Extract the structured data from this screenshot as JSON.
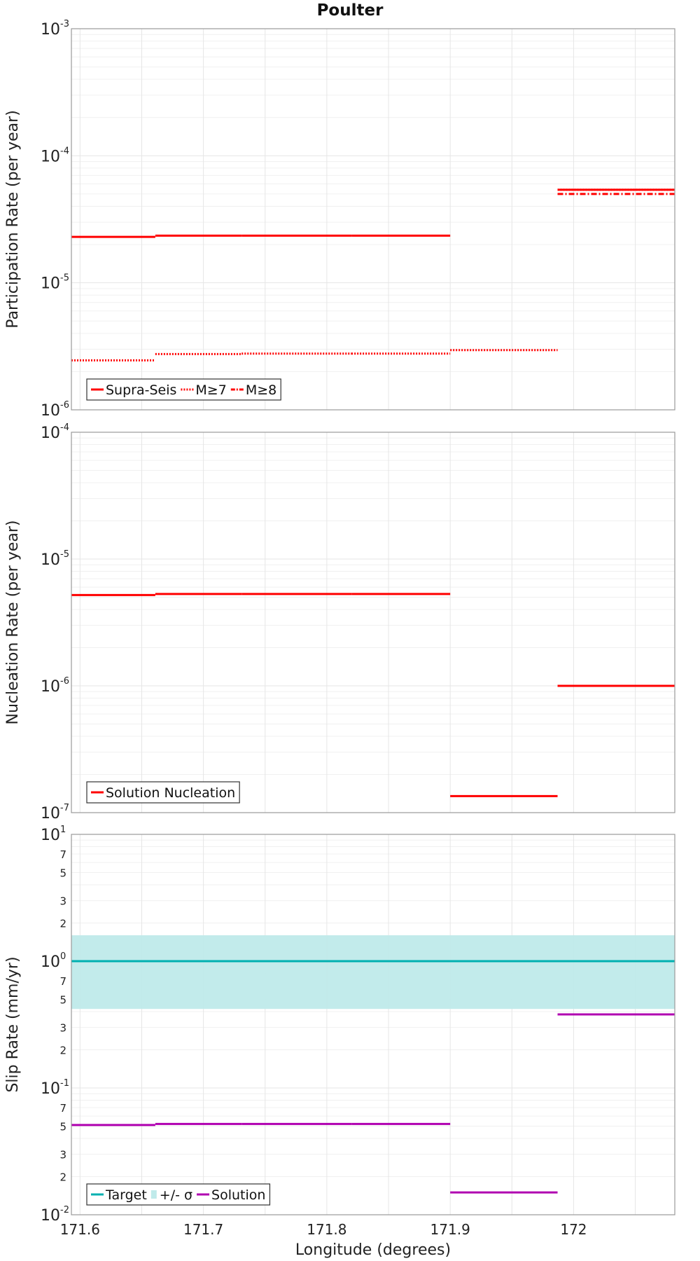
{
  "chart_data": [
    {
      "type": "line",
      "title": "Poulter",
      "ylabel": "Participation Rate (per year)",
      "xlabel": "",
      "yscale": "log",
      "xlim": [
        171.593,
        172.082
      ],
      "ylim": [
        1e-06,
        0.001
      ],
      "grid": true,
      "legend_position": "bottom-left",
      "series": [
        {
          "name": "Supra-Seis",
          "color": "#ff0000",
          "style": "solid",
          "segments": [
            {
              "x": [
                171.593,
                171.661
              ],
              "y": 2.3e-05
            },
            {
              "x": [
                171.661,
                171.731
              ],
              "y": 2.35e-05
            },
            {
              "x": [
                171.731,
                171.82
              ],
              "y": 2.35e-05
            },
            {
              "x": [
                171.82,
                171.9
              ],
              "y": 2.35e-05
            },
            {
              "x": [
                171.987,
                172.082
              ],
              "y": 5.4e-05
            }
          ]
        },
        {
          "name": "M≥7",
          "color": "#ff0000",
          "style": "dotted",
          "segments": [
            {
              "x": [
                171.593,
                171.661
              ],
              "y": 2.45e-06
            },
            {
              "x": [
                171.661,
                171.731
              ],
              "y": 2.75e-06
            },
            {
              "x": [
                171.731,
                171.82
              ],
              "y": 2.77e-06
            },
            {
              "x": [
                171.82,
                171.9
              ],
              "y": 2.77e-06
            },
            {
              "x": [
                171.9,
                171.987
              ],
              "y": 2.95e-06
            },
            {
              "x": [
                171.987,
                172.082
              ],
              "y": 5.4e-05
            }
          ]
        },
        {
          "name": "M≥8",
          "color": "#ff0000",
          "style": "dashdot",
          "segments": [
            {
              "x": [
                171.987,
                172.082
              ],
              "y": 5e-05
            }
          ]
        }
      ]
    },
    {
      "type": "line",
      "title": "",
      "ylabel": "Nucleation Rate (per year)",
      "xlabel": "",
      "yscale": "log",
      "xlim": [
        171.593,
        172.082
      ],
      "ylim": [
        1e-07,
        0.0001
      ],
      "grid": true,
      "legend_position": "bottom-left",
      "series": [
        {
          "name": "Solution Nucleation",
          "color": "#ff0000",
          "style": "solid",
          "segments": [
            {
              "x": [
                171.593,
                171.661
              ],
              "y": 5.2e-06
            },
            {
              "x": [
                171.661,
                171.731
              ],
              "y": 5.3e-06
            },
            {
              "x": [
                171.731,
                171.82
              ],
              "y": 5.3e-06
            },
            {
              "x": [
                171.82,
                171.9
              ],
              "y": 5.3e-06
            },
            {
              "x": [
                171.9,
                171.987
              ],
              "y": 1.35e-07
            },
            {
              "x": [
                171.987,
                172.082
              ],
              "y": 1e-06
            }
          ]
        }
      ]
    },
    {
      "type": "line",
      "title": "",
      "ylabel": "Slip Rate (mm/yr)",
      "xlabel": "Longitude (degrees)",
      "yscale": "log",
      "xlim": [
        171.593,
        172.082
      ],
      "ylim": [
        0.01,
        10
      ],
      "grid": true,
      "legend_position": "bottom-left",
      "x_ticks": [
        "171.6",
        "171.7",
        "171.8",
        "171.9",
        "172"
      ],
      "series": [
        {
          "name": "Target",
          "color": "#00b0b0",
          "style": "solid",
          "segments": [
            {
              "x": [
                171.593,
                172.082
              ],
              "y": 1.0
            }
          ]
        },
        {
          "name": "+/- σ",
          "color": "#bfeaea",
          "style": "band",
          "band": {
            "x": [
              171.593,
              172.082
            ],
            "low": 0.42,
            "high": 1.6
          }
        },
        {
          "name": "Solution",
          "color": "#b000b0",
          "style": "solid",
          "segments": [
            {
              "x": [
                171.593,
                171.661
              ],
              "y": 0.051
            },
            {
              "x": [
                171.661,
                171.731
              ],
              "y": 0.052
            },
            {
              "x": [
                171.731,
                171.82
              ],
              "y": 0.052
            },
            {
              "x": [
                171.82,
                171.9
              ],
              "y": 0.052
            },
            {
              "x": [
                171.9,
                171.987
              ],
              "y": 0.015
            },
            {
              "x": [
                171.987,
                172.082
              ],
              "y": 0.38
            }
          ]
        }
      ]
    }
  ]
}
